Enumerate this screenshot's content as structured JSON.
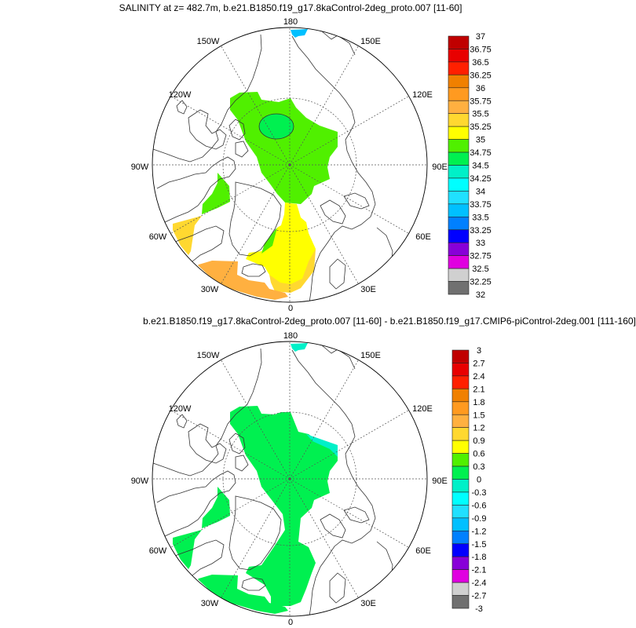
{
  "panels": [
    {
      "title": "SALINITY at z= 482.7m, b.e21.B1850.f19_g17.8kaControl-2deg_proto.007 [11-60]",
      "colorbar": {
        "labels": [
          "37",
          "36.75",
          "36.5",
          "36.25",
          "36",
          "35.75",
          "35.5",
          "35.25",
          "35",
          "34.75",
          "34.5",
          "34.25",
          "34",
          "33.75",
          "33.5",
          "33.25",
          "33",
          "32.75",
          "32.5",
          "32.25",
          "32"
        ]
      }
    },
    {
      "title": "b.e21.B1850.f19_g17.8kaControl-2deg_proto.007 [11-60] - b.e21.B1850.f19_g17.CMIP6-piControl-2deg.001 [111-160]",
      "colorbar": {
        "labels": [
          "3",
          "2.7",
          "2.4",
          "2.1",
          "1.8",
          "1.5",
          "1.2",
          "0.9",
          "0.6",
          "0.3",
          "0",
          "-0.3",
          "-0.6",
          "-0.9",
          "-1.2",
          "-1.5",
          "-1.8",
          "-2.1",
          "-2.4",
          "-2.7",
          "-3"
        ]
      }
    }
  ],
  "colorbar_colors": [
    "#c00000",
    "#e80000",
    "#ff2000",
    "#f08000",
    "#ff9a20",
    "#ffb040",
    "#ffd830",
    "#ffff00",
    "#50f000",
    "#00f050",
    "#00f0c8",
    "#00ffff",
    "#20e0ff",
    "#00c0ff",
    "#0080ff",
    "#0000ff",
    "#8800d8",
    "#e000e0",
    "#d0d0d0",
    "#707070"
  ],
  "longitude_labels": {
    "lon_180": "180",
    "lon_150w": "150W",
    "lon_150e": "150E",
    "lon_120w": "120W",
    "lon_120e": "120E",
    "lon_90w": "90W",
    "lon_90e": "90E",
    "lon_60w": "60W",
    "lon_60e": "60E",
    "lon_30w": "30W",
    "lon_30e": "30E",
    "lon_0": "0"
  },
  "projection": "north polar stereographic"
}
